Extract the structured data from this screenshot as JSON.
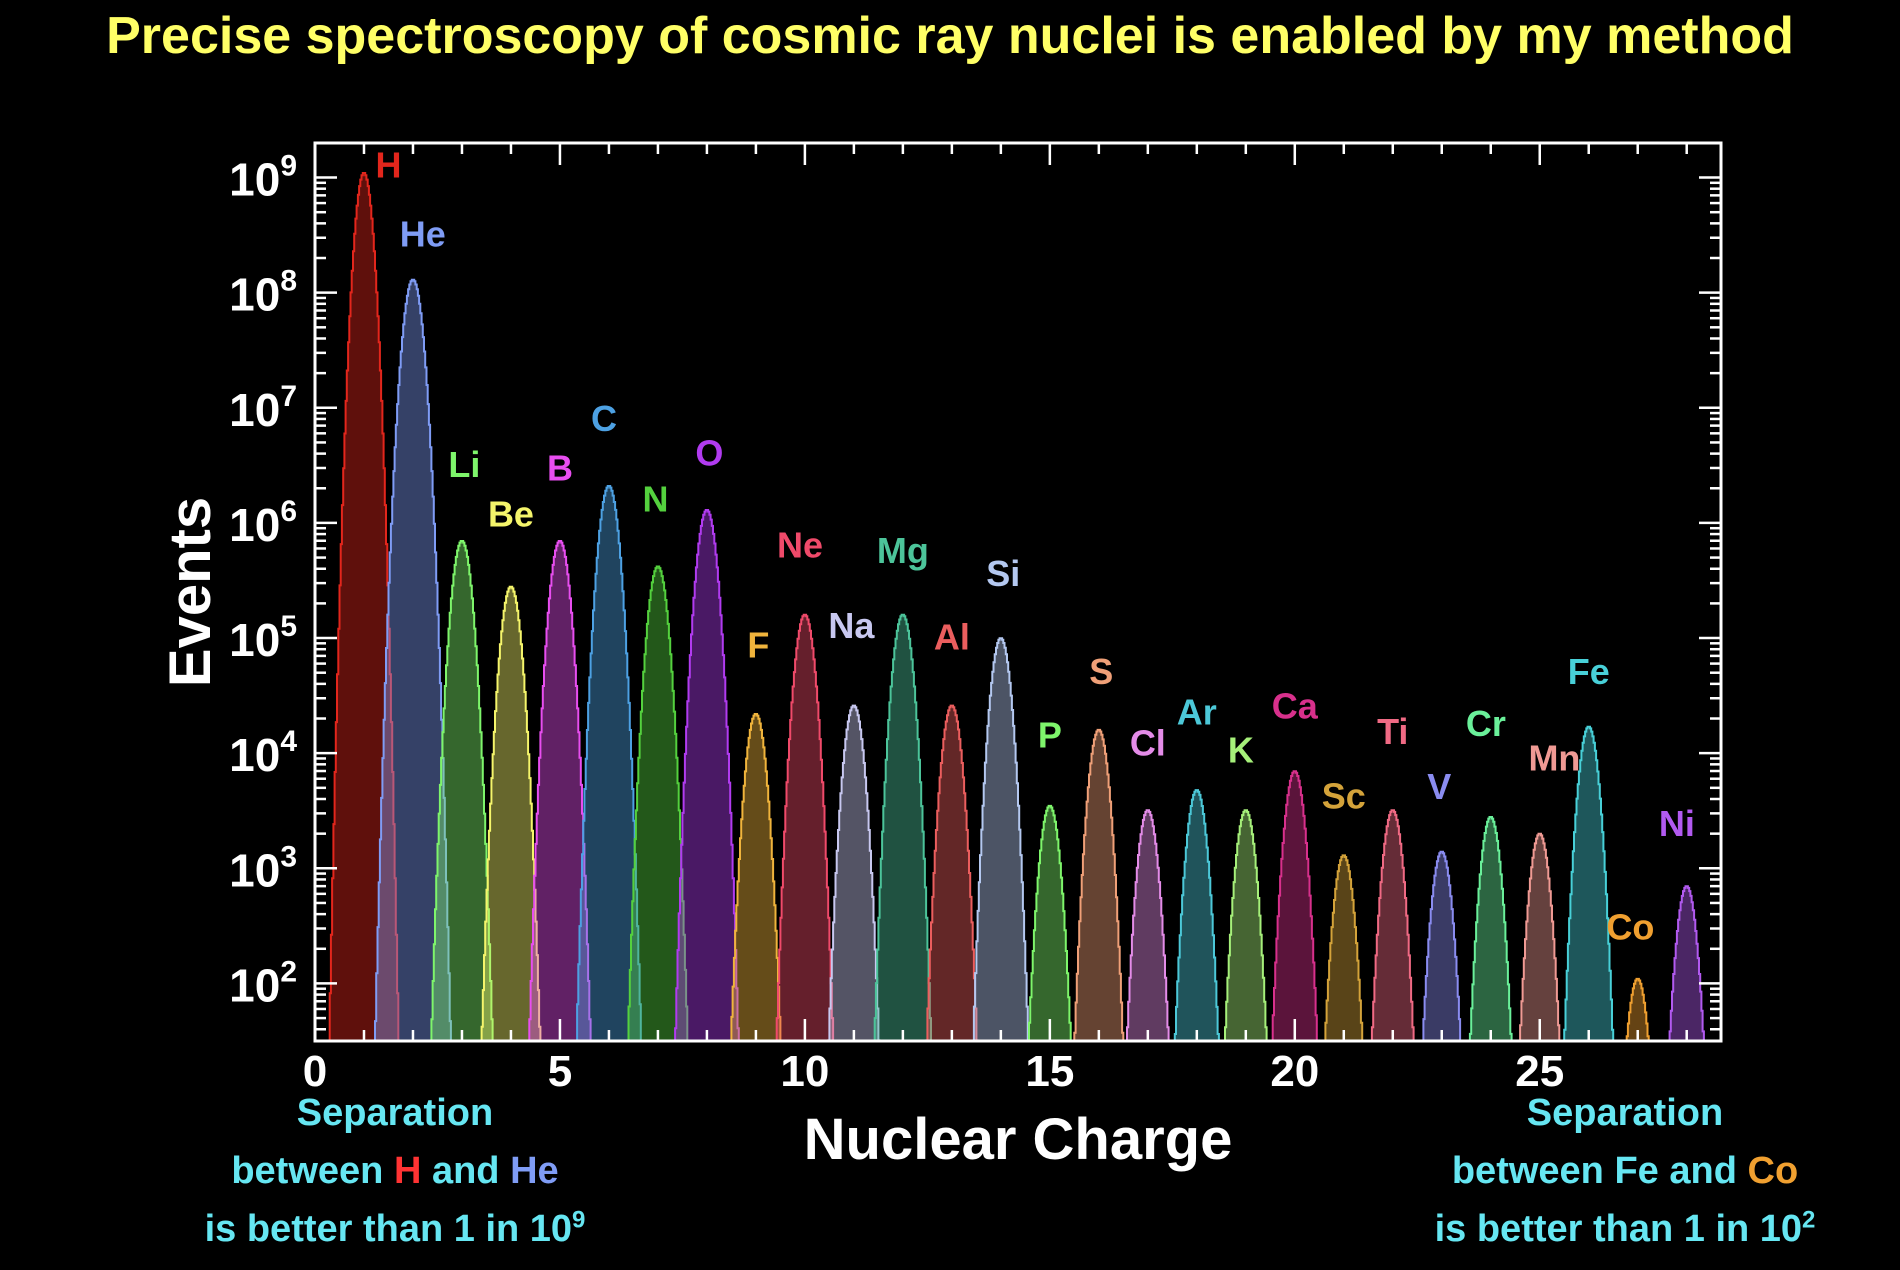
{
  "title": "Precise spectroscopy of cosmic ray nuclei is enabled by my method",
  "notes": {
    "left": {
      "line1": "Separation",
      "line2_pre": "between ",
      "el1": "H",
      "line2_mid": " and ",
      "el2": "He",
      "line3": "is better than 1 in 10",
      "exp": "9"
    },
    "right": {
      "line1": "Separation",
      "line2_pre": "between ",
      "el1": "Fe",
      "line2_mid": " and ",
      "el2": "Co",
      "line3": "is better than 1 in 10",
      "exp": "2"
    }
  },
  "chart_data": {
    "type": "histogram",
    "scale": "log",
    "xlabel": "Nuclear Charge",
    "ylabel": "Events",
    "xlim": [
      0,
      28.7
    ],
    "ylim_log10": [
      1.5,
      9.3
    ],
    "xticks": [
      0,
      5,
      10,
      15,
      20,
      25
    ],
    "yticks": [
      {
        "base": "10",
        "exp": "2",
        "log": 2
      },
      {
        "base": "10",
        "exp": "3",
        "log": 3
      },
      {
        "base": "10",
        "exp": "4",
        "log": 4
      },
      {
        "base": "10",
        "exp": "5",
        "log": 5
      },
      {
        "base": "10",
        "exp": "6",
        "log": 6
      },
      {
        "base": "10",
        "exp": "7",
        "log": 7
      },
      {
        "base": "10",
        "exp": "8",
        "log": 8
      },
      {
        "base": "10",
        "exp": "9",
        "log": 9
      }
    ],
    "peaks": [
      {
        "element": "H",
        "z": 1,
        "peak_events": 1100000000.0,
        "color": "#e3261c",
        "label_dz": 0.5,
        "label_log": 9.0
      },
      {
        "element": "He",
        "z": 2,
        "peak_events": 130000000.0,
        "color": "#7f9cf5",
        "label_dz": 0.2,
        "label_log": 8.4
      },
      {
        "element": "Li",
        "z": 3,
        "peak_events": 700000.0,
        "color": "#7ef56b",
        "label_dz": 0.05,
        "label_log": 6.4
      },
      {
        "element": "Be",
        "z": 4,
        "peak_events": 280000.0,
        "color": "#f5f56b",
        "label_dz": 0.0,
        "label_log": 5.97
      },
      {
        "element": "B",
        "z": 5,
        "peak_events": 700000.0,
        "color": "#e84ef0",
        "label_dz": 0.0,
        "label_log": 6.37
      },
      {
        "element": "C",
        "z": 6,
        "peak_events": 2100000.0,
        "color": "#4da1e3",
        "label_dz": -0.1,
        "label_log": 6.8
      },
      {
        "element": "N",
        "z": 7,
        "peak_events": 420000.0,
        "color": "#54d13e",
        "label_dz": -0.05,
        "label_log": 6.1
      },
      {
        "element": "O",
        "z": 8,
        "peak_events": 1300000.0,
        "color": "#b13bf0",
        "label_dz": 0.05,
        "label_log": 6.5
      },
      {
        "element": "F",
        "z": 9,
        "peak_events": 22000.0,
        "color": "#f0b43c",
        "label_dz": 0.05,
        "label_log": 4.83
      },
      {
        "element": "Ne",
        "z": 10,
        "peak_events": 160000.0,
        "color": "#f04a6a",
        "label_dz": -0.1,
        "label_log": 5.7
      },
      {
        "element": "Na",
        "z": 11,
        "peak_events": 26000.0,
        "color": "#c8c8f0",
        "label_dz": -0.05,
        "label_log": 5.0
      },
      {
        "element": "Mg",
        "z": 12,
        "peak_events": 160000.0,
        "color": "#4cc49a",
        "label_dz": 0.0,
        "label_log": 5.65
      },
      {
        "element": "Al",
        "z": 13,
        "peak_events": 26000.0,
        "color": "#eb5e5e",
        "label_dz": 0.0,
        "label_log": 4.9
      },
      {
        "element": "Si",
        "z": 14,
        "peak_events": 100000.0,
        "color": "#b4c8f0",
        "label_dz": 0.05,
        "label_log": 5.45
      },
      {
        "element": "P",
        "z": 15,
        "peak_events": 3500.0,
        "color": "#7ef56b",
        "label_dz": 0.0,
        "label_log": 4.05
      },
      {
        "element": "S",
        "z": 16,
        "peak_events": 16000.0,
        "color": "#f0a078",
        "label_dz": 0.05,
        "label_log": 4.6
      },
      {
        "element": "Cl",
        "z": 17,
        "peak_events": 3200.0,
        "color": "#e48ce8",
        "label_dz": 0.0,
        "label_log": 3.98
      },
      {
        "element": "Ar",
        "z": 18,
        "peak_events": 4800.0,
        "color": "#4cc8d8",
        "label_dz": 0.0,
        "label_log": 4.25
      },
      {
        "element": "K",
        "z": 19,
        "peak_events": 3200.0,
        "color": "#a6f07a",
        "label_dz": -0.1,
        "label_log": 3.92
      },
      {
        "element": "Ca",
        "z": 20,
        "peak_events": 7000.0,
        "color": "#d8308c",
        "label_dz": 0.0,
        "label_log": 4.3
      },
      {
        "element": "Sc",
        "z": 21,
        "peak_events": 1300.0,
        "color": "#d4a33a",
        "label_dz": 0.0,
        "label_log": 3.52
      },
      {
        "element": "Ti",
        "z": 22,
        "peak_events": 3200.0,
        "color": "#f06a84",
        "label_dz": 0.0,
        "label_log": 4.08
      },
      {
        "element": "V",
        "z": 23,
        "peak_events": 1400.0,
        "color": "#8a8cf0",
        "label_dz": -0.05,
        "label_log": 3.6
      },
      {
        "element": "Cr",
        "z": 24,
        "peak_events": 2800.0,
        "color": "#6af09a",
        "label_dz": -0.1,
        "label_log": 4.15
      },
      {
        "element": "Mn",
        "z": 25,
        "peak_events": 2000.0,
        "color": "#f09a94",
        "label_dz": 0.3,
        "label_log": 3.85
      },
      {
        "element": "Fe",
        "z": 26,
        "peak_events": 17000.0,
        "color": "#48d0d8",
        "label_dz": 0.0,
        "label_log": 4.6
      },
      {
        "element": "Co",
        "z": 27,
        "peak_events": 110.0,
        "color": "#f0a030",
        "label_dz": -0.15,
        "label_log": 2.38
      },
      {
        "element": "Ni",
        "z": 28,
        "peak_events": 700.0,
        "color": "#b25af0",
        "label_dz": -0.2,
        "label_log": 3.28
      }
    ]
  }
}
